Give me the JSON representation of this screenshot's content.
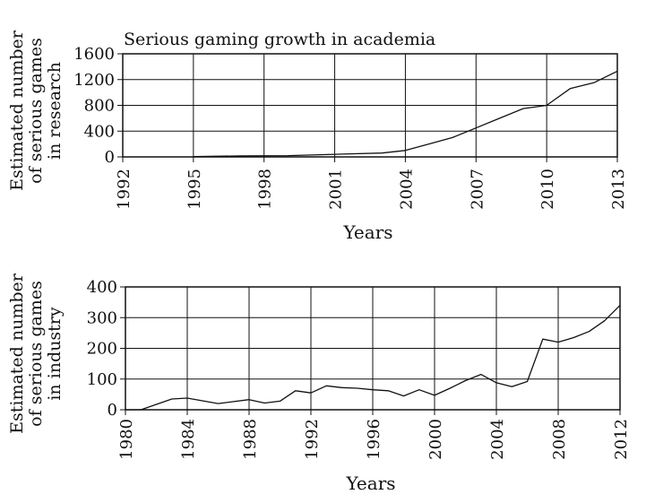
{
  "chart_data": [
    {
      "type": "line",
      "title": "Serious gaming growth in academia",
      "xlabel": "Years",
      "ylabel": "Estimated number of serious games in research",
      "ylabel_lines": [
        "Estimated number",
        "of serious games",
        "in research"
      ],
      "xlim": [
        1992,
        2013
      ],
      "ylim": [
        0,
        1600
      ],
      "x_ticks": [
        1992,
        1995,
        1998,
        2001,
        2004,
        2007,
        2010,
        2013
      ],
      "y_ticks": [
        0,
        400,
        800,
        1200,
        1600
      ],
      "grid": true,
      "series": [
        {
          "x": [
            1995,
            1997,
            1999,
            2001,
            2003,
            2004,
            2005,
            2006,
            2007,
            2008,
            2009,
            2010,
            2011,
            2012,
            2013
          ],
          "values": [
            5,
            15,
            20,
            40,
            60,
            100,
            200,
            300,
            450,
            600,
            750,
            800,
            1060,
            1150,
            1330
          ]
        }
      ]
    },
    {
      "type": "line",
      "title": "",
      "xlabel": "Years",
      "ylabel": "Estimated number of serious games in industry",
      "ylabel_lines": [
        "Estimated number",
        "of serious games",
        "in industry"
      ],
      "xlim": [
        1980,
        2012
      ],
      "ylim": [
        0,
        400
      ],
      "x_ticks": [
        1980,
        1984,
        1988,
        1992,
        1996,
        2000,
        2004,
        2008,
        2012
      ],
      "y_ticks": [
        0,
        100,
        200,
        300,
        400
      ],
      "grid": true,
      "series": [
        {
          "x": [
            1980,
            1981,
            1983,
            1984,
            1986,
            1988,
            1989,
            1990,
            1991,
            1992,
            1993,
            1994,
            1995,
            1996,
            1997,
            1998,
            1999,
            2000,
            2001,
            2002,
            2003,
            2004,
            2005,
            2006,
            2007,
            2008,
            2009,
            2010,
            2011,
            2012
          ],
          "values": [
            0,
            0,
            35,
            38,
            20,
            33,
            22,
            28,
            62,
            55,
            78,
            72,
            70,
            65,
            62,
            45,
            65,
            47,
            70,
            95,
            115,
            88,
            75,
            92,
            230,
            220,
            235,
            255,
            290,
            340
          ]
        }
      ]
    }
  ]
}
